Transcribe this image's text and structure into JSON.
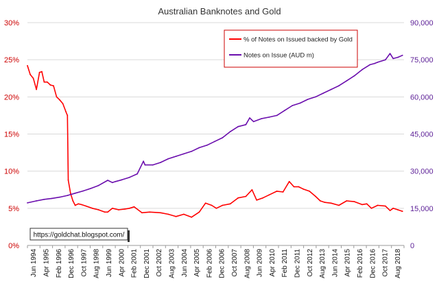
{
  "chart_data": {
    "type": "line",
    "title": "Australian Banknotes and Gold",
    "xlabel": "",
    "left_axis": {
      "ylabel": "",
      "ylim": [
        0,
        30
      ],
      "ticks": [
        "0%",
        "5%",
        "10%",
        "15%",
        "20%",
        "25%",
        "30%"
      ],
      "color": "#cc0000"
    },
    "right_axis": {
      "ylabel": "",
      "ylim": [
        0,
        90000
      ],
      "ticks": [
        "0",
        "15,000",
        "30,000",
        "45,000",
        "60,000",
        "75,000",
        "90,000"
      ],
      "color": "#5b1e96"
    },
    "x_range_years": [
      1994.42,
      2018.7
    ],
    "x_tick_labels": [
      "Jun 1994",
      "Apr 1995",
      "Feb 1996",
      "Dec 1996",
      "Oct 1997",
      "Aug 1998",
      "Jun 1999",
      "Apr 2000",
      "Feb 2001",
      "Dec 2001",
      "Oct 2002",
      "Aug 2003",
      "Jun 2004",
      "Apr 2005",
      "Feb 2006",
      "Dec 2006",
      "Oct 2007",
      "Aug 2008",
      "Jun 2009",
      "Apr 2010",
      "Feb 2011",
      "Dec 2011",
      "Oct 2012",
      "Aug 2013",
      "Jun 2014",
      "Apr 2015",
      "Feb 2016",
      "Dec 2016",
      "Oct 2017",
      "Aug 2018"
    ],
    "series": [
      {
        "name": "% of Notes on Issued backed by Gold",
        "axis": "left",
        "color": "#ff0000",
        "x": [
          1994.42,
          1994.6,
          1994.8,
          1995.0,
          1995.2,
          1995.35,
          1995.5,
          1995.7,
          1995.9,
          1996.1,
          1996.3,
          1996.5,
          1996.7,
          1996.9,
          1997.0,
          1997.05,
          1997.2,
          1997.35,
          1997.5,
          1997.7,
          1997.9,
          1998.2,
          1998.6,
          1999.0,
          1999.4,
          1999.6,
          1999.9,
          2000.3,
          2000.7,
          2001.0,
          2001.3,
          2001.8,
          2002.3,
          2003.0,
          2003.5,
          2004.0,
          2004.5,
          2005.0,
          2005.5,
          2005.9,
          2006.3,
          2006.6,
          2007.0,
          2007.5,
          2008.0,
          2008.5,
          2008.9,
          2009.2,
          2009.6,
          2010.0,
          2010.5,
          2010.9,
          2011.3,
          2011.6,
          2011.9,
          2012.2,
          2012.6,
          2013.0,
          2013.3,
          2013.6,
          2014.0,
          2014.5,
          2015.0,
          2015.5,
          2016.0,
          2016.3,
          2016.6,
          2017.0,
          2017.5,
          2017.8,
          2018.0,
          2018.3,
          2018.6
        ],
        "values": [
          24.2,
          23.0,
          22.5,
          21.0,
          23.3,
          23.4,
          22.0,
          22.0,
          21.6,
          21.5,
          20.0,
          19.6,
          19.1,
          18.0,
          17.5,
          8.8,
          7.0,
          6.0,
          5.4,
          5.6,
          5.5,
          5.3,
          5.0,
          4.8,
          4.5,
          4.5,
          5.0,
          4.8,
          4.9,
          5.0,
          5.2,
          4.4,
          4.5,
          4.4,
          4.2,
          3.9,
          4.2,
          3.8,
          4.5,
          5.7,
          5.4,
          5.0,
          5.4,
          5.6,
          6.4,
          6.6,
          7.5,
          6.1,
          6.4,
          6.8,
          7.3,
          7.2,
          8.6,
          7.9,
          7.9,
          7.6,
          7.3,
          6.6,
          6.0,
          5.8,
          5.7,
          5.4,
          6.0,
          5.9,
          5.5,
          5.6,
          5.0,
          5.4,
          5.3,
          4.7,
          5.0,
          4.8,
          4.6
        ]
      },
      {
        "name": "Notes on Issue (AUD m)",
        "axis": "right",
        "color": "#6a0dad",
        "x": [
          1994.42,
          1995.0,
          1995.5,
          1996.0,
          1996.5,
          1997.0,
          1997.5,
          1998.0,
          1998.5,
          1999.0,
          1999.6,
          1999.9,
          2000.1,
          2000.5,
          2001.0,
          2001.5,
          2001.9,
          2002.0,
          2002.5,
          2003.0,
          2003.5,
          2004.0,
          2004.5,
          2005.0,
          2005.5,
          2006.0,
          2006.5,
          2007.0,
          2007.5,
          2008.0,
          2008.5,
          2008.75,
          2009.0,
          2009.5,
          2010.0,
          2010.5,
          2011.0,
          2011.5,
          2012.0,
          2012.5,
          2013.0,
          2013.5,
          2014.0,
          2014.5,
          2015.0,
          2015.5,
          2016.0,
          2016.5,
          2016.8,
          2017.0,
          2017.5,
          2017.8,
          2018.0,
          2018.3,
          2018.6
        ],
        "values": [
          17200,
          18000,
          18600,
          19000,
          19500,
          20200,
          21100,
          22000,
          23000,
          24200,
          26300,
          25400,
          25800,
          26500,
          27500,
          28900,
          34000,
          32500,
          32500,
          33500,
          35000,
          36000,
          37000,
          38000,
          39500,
          40500,
          42000,
          43500,
          46000,
          48000,
          48800,
          51500,
          50000,
          51200,
          51800,
          52500,
          54500,
          56500,
          57500,
          59000,
          60000,
          61500,
          63000,
          64500,
          66500,
          68500,
          71000,
          73000,
          73500,
          74000,
          75000,
          77500,
          75500,
          76000,
          76800
        ]
      }
    ],
    "legend": {
      "placement": "top-right",
      "entries": [
        "% of Notes on Issued backed by Gold",
        "Notes on Issue (AUD m)"
      ]
    }
  },
  "watermark": "https://goldchat.blogspot.com/"
}
